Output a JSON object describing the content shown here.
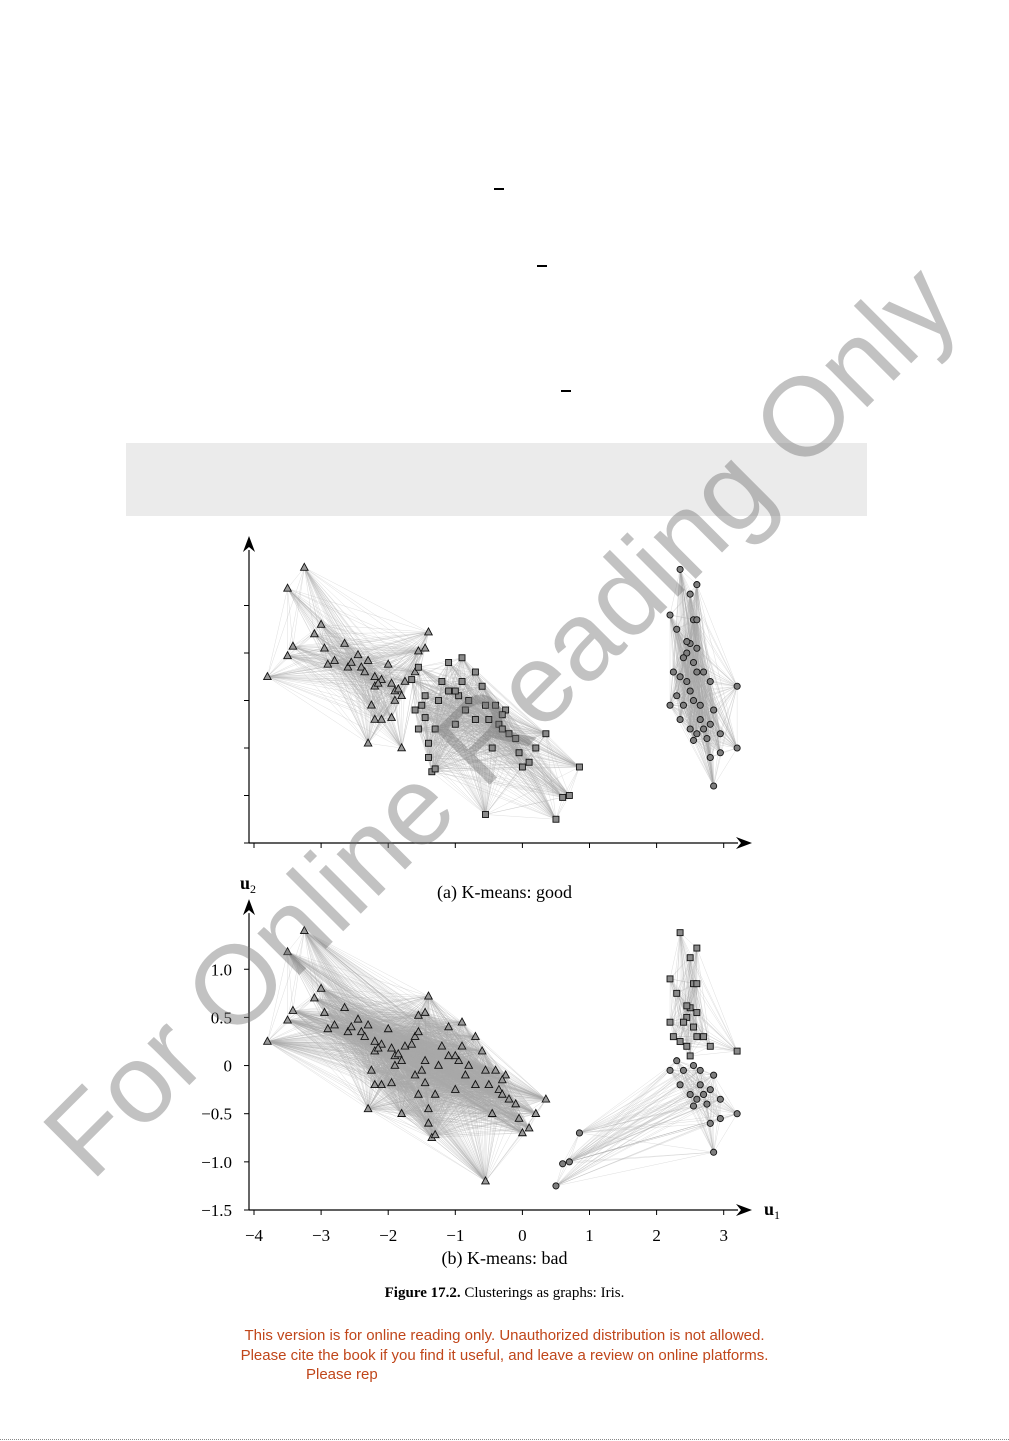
{
  "figure": {
    "number_label": "Figure 17.2.",
    "caption": "Clusterings as graphs: Iris."
  },
  "subplots": {
    "a_caption": "(a) K-means: good",
    "b_caption": "(b) K-means: bad"
  },
  "notice": {
    "line1": "This version is for online reading only. Unauthorized distribution is not allowed.",
    "line2": "Please cite the book if you find it useful, and leave a review on online platforms.",
    "line3": "Please rep"
  },
  "watermark": "For Online Reading Only",
  "chart_data": [
    {
      "type": "scatter",
      "title": "(a) K-means: good",
      "xlim": [
        -4,
        3.3
      ],
      "ylim": [
        -1.5,
        1.5
      ],
      "edges": "cluster-complete-graph",
      "series": [
        {
          "marker": "triangle",
          "points": [
            [
              -3.8,
              0.25
            ],
            [
              -3.5,
              1.18
            ],
            [
              -3.25,
              1.4
            ],
            [
              -3.5,
              0.47
            ],
            [
              -3.42,
              0.57
            ],
            [
              -3.1,
              0.7
            ],
            [
              -3.0,
              0.8
            ],
            [
              -2.95,
              0.55
            ],
            [
              -2.9,
              0.38
            ],
            [
              -2.8,
              0.42
            ],
            [
              -2.65,
              0.6
            ],
            [
              -2.6,
              0.35
            ],
            [
              -2.55,
              0.4
            ],
            [
              -2.45,
              0.48
            ],
            [
              -2.4,
              0.35
            ],
            [
              -2.35,
              0.3
            ],
            [
              -2.3,
              0.42
            ],
            [
              -2.2,
              0.15
            ],
            [
              -2.25,
              -0.05
            ],
            [
              -2.2,
              0.25
            ],
            [
              -2.1,
              0.22
            ],
            [
              -2.0,
              0.38
            ],
            [
              -1.95,
              0.18
            ],
            [
              -1.9,
              0.1
            ],
            [
              -1.85,
              0.12
            ],
            [
              -1.8,
              0.05
            ],
            [
              -1.75,
              0.2
            ],
            [
              -1.6,
              0.3
            ],
            [
              -1.55,
              0.52
            ],
            [
              -1.45,
              0.55
            ],
            [
              -2.3,
              -0.45
            ],
            [
              -2.2,
              -0.2
            ],
            [
              -2.1,
              -0.2
            ],
            [
              -1.95,
              -0.18
            ],
            [
              -1.8,
              -0.5
            ],
            [
              -1.4,
              0.72
            ],
            [
              -1.9,
              0.0
            ],
            [
              -2.15,
              0.18
            ]
          ]
        },
        {
          "marker": "square",
          "points": [
            [
              -1.65,
              0.22
            ],
            [
              -1.6,
              -0.1
            ],
            [
              -1.55,
              -0.3
            ],
            [
              -1.5,
              -0.05
            ],
            [
              -1.45,
              0.05
            ],
            [
              -1.45,
              -0.18
            ],
            [
              -1.4,
              -0.45
            ],
            [
              -1.35,
              -0.75
            ],
            [
              -1.3,
              -0.72
            ],
            [
              -1.3,
              -0.3
            ],
            [
              -1.25,
              0.0
            ],
            [
              -1.2,
              0.2
            ],
            [
              -1.1,
              0.4
            ],
            [
              -1.1,
              0.1
            ],
            [
              -1.0,
              -0.25
            ],
            [
              -0.95,
              0.05
            ],
            [
              -0.9,
              0.2
            ],
            [
              -0.9,
              0.45
            ],
            [
              -0.85,
              -0.1
            ],
            [
              -0.8,
              0.0
            ],
            [
              -0.7,
              0.3
            ],
            [
              -0.7,
              -0.2
            ],
            [
              -0.6,
              0.15
            ],
            [
              -0.55,
              -0.05
            ],
            [
              -0.5,
              -0.2
            ],
            [
              -0.45,
              -0.5
            ],
            [
              -0.4,
              -0.05
            ],
            [
              -0.35,
              -0.25
            ],
            [
              -0.3,
              -0.3
            ],
            [
              -0.25,
              -0.1
            ],
            [
              -0.2,
              -0.35
            ],
            [
              -0.1,
              -0.4
            ],
            [
              -0.05,
              -0.55
            ],
            [
              0.0,
              -0.7
            ],
            [
              0.1,
              -0.65
            ],
            [
              0.2,
              -0.5
            ],
            [
              -0.55,
              -1.2
            ],
            [
              0.35,
              -0.35
            ],
            [
              -1.0,
              0.1
            ],
            [
              -1.55,
              0.35
            ],
            [
              -1.4,
              -0.6
            ],
            [
              0.85,
              -0.7
            ],
            [
              0.7,
              -1.0
            ],
            [
              0.5,
              -1.25
            ],
            [
              -0.3,
              -0.15
            ],
            [
              0.6,
              -1.02
            ]
          ]
        },
        {
          "marker": "circle",
          "points": [
            [
              2.35,
              1.38
            ],
            [
              2.6,
              1.22
            ],
            [
              2.5,
              1.12
            ],
            [
              2.2,
              0.9
            ],
            [
              2.55,
              0.85
            ],
            [
              2.3,
              0.75
            ],
            [
              2.5,
              0.6
            ],
            [
              2.45,
              0.5
            ],
            [
              2.6,
              0.55
            ],
            [
              2.4,
              0.45
            ],
            [
              2.55,
              0.4
            ],
            [
              2.25,
              0.3
            ],
            [
              2.35,
              0.25
            ],
            [
              2.45,
              0.2
            ],
            [
              2.6,
              0.3
            ],
            [
              2.7,
              0.3
            ],
            [
              2.5,
              0.1
            ],
            [
              2.8,
              0.2
            ],
            [
              2.3,
              0.05
            ],
            [
              2.4,
              -0.05
            ],
            [
              2.55,
              0.0
            ],
            [
              2.65,
              -0.05
            ],
            [
              2.35,
              -0.2
            ],
            [
              2.5,
              -0.3
            ],
            [
              2.6,
              -0.35
            ],
            [
              2.7,
              -0.3
            ],
            [
              2.8,
              -0.25
            ],
            [
              2.85,
              -0.1
            ],
            [
              2.95,
              -0.55
            ],
            [
              2.85,
              -0.9
            ],
            [
              3.2,
              0.15
            ],
            [
              3.2,
              -0.5
            ],
            [
              2.75,
              -0.4
            ],
            [
              2.65,
              -0.2
            ],
            [
              2.55,
              -0.42
            ],
            [
              2.2,
              -0.05
            ],
            [
              2.45,
              0.62
            ],
            [
              2.8,
              -0.6
            ],
            [
              2.6,
              0.85
            ],
            [
              2.95,
              -0.35
            ]
          ]
        }
      ]
    },
    {
      "type": "scatter",
      "title": "(b) K-means: bad",
      "xlabel": "u1",
      "ylabel": "u2",
      "xlim": [
        -4,
        3.3
      ],
      "ylim": [
        -1.5,
        1.5
      ],
      "xticks": [
        "−4",
        "−3",
        "−2",
        "−1",
        "0",
        "1",
        "2",
        "3"
      ],
      "yticks": [
        "−1.5",
        "−1.0",
        "−0.5",
        "0",
        "0.5",
        "1.0"
      ],
      "edges": "cluster-complete-graph",
      "series": [
        {
          "marker": "triangle",
          "points": [
            [
              -3.8,
              0.25
            ],
            [
              -3.5,
              1.18
            ],
            [
              -3.25,
              1.4
            ],
            [
              -3.5,
              0.47
            ],
            [
              -3.42,
              0.57
            ],
            [
              -3.1,
              0.7
            ],
            [
              -3.0,
              0.8
            ],
            [
              -2.95,
              0.55
            ],
            [
              -2.9,
              0.38
            ],
            [
              -2.8,
              0.42
            ],
            [
              -2.65,
              0.6
            ],
            [
              -2.6,
              0.35
            ],
            [
              -2.55,
              0.4
            ],
            [
              -2.45,
              0.48
            ],
            [
              -2.4,
              0.35
            ],
            [
              -2.35,
              0.3
            ],
            [
              -2.3,
              0.42
            ],
            [
              -2.2,
              0.15
            ],
            [
              -2.25,
              -0.05
            ],
            [
              -2.2,
              0.25
            ],
            [
              -2.1,
              0.22
            ],
            [
              -2.0,
              0.38
            ],
            [
              -1.95,
              0.18
            ],
            [
              -1.9,
              0.1
            ],
            [
              -1.85,
              0.12
            ],
            [
              -1.8,
              0.05
            ],
            [
              -1.75,
              0.2
            ],
            [
              -1.6,
              0.3
            ],
            [
              -1.55,
              0.52
            ],
            [
              -1.45,
              0.55
            ],
            [
              -2.3,
              -0.45
            ],
            [
              -2.2,
              -0.2
            ],
            [
              -2.1,
              -0.2
            ],
            [
              -1.95,
              -0.18
            ],
            [
              -1.8,
              -0.5
            ],
            [
              -1.4,
              0.72
            ],
            [
              -1.9,
              0.0
            ],
            [
              -2.15,
              0.18
            ],
            [
              -1.65,
              0.22
            ],
            [
              -1.6,
              -0.1
            ],
            [
              -1.55,
              -0.3
            ],
            [
              -1.5,
              -0.05
            ],
            [
              -1.45,
              0.05
            ],
            [
              -1.45,
              -0.18
            ],
            [
              -1.4,
              -0.45
            ],
            [
              -1.35,
              -0.75
            ],
            [
              -1.3,
              -0.72
            ],
            [
              -1.3,
              -0.3
            ],
            [
              -1.25,
              0.0
            ],
            [
              -1.2,
              0.2
            ],
            [
              -1.1,
              0.4
            ],
            [
              -1.1,
              0.1
            ],
            [
              -1.0,
              -0.25
            ],
            [
              -0.95,
              0.05
            ],
            [
              -0.9,
              0.2
            ],
            [
              -0.9,
              0.45
            ],
            [
              -0.85,
              -0.1
            ],
            [
              -0.8,
              0.0
            ],
            [
              -0.7,
              0.3
            ],
            [
              -0.7,
              -0.2
            ],
            [
              -0.6,
              0.15
            ],
            [
              -0.55,
              -0.05
            ],
            [
              -0.5,
              -0.2
            ],
            [
              -0.45,
              -0.5
            ],
            [
              -0.4,
              -0.05
            ],
            [
              -0.35,
              -0.25
            ],
            [
              -0.3,
              -0.3
            ],
            [
              -0.25,
              -0.1
            ],
            [
              -0.2,
              -0.35
            ],
            [
              -0.1,
              -0.4
            ],
            [
              -0.05,
              -0.55
            ],
            [
              0.0,
              -0.7
            ],
            [
              0.1,
              -0.65
            ],
            [
              0.2,
              -0.5
            ],
            [
              -0.55,
              -1.2
            ],
            [
              0.35,
              -0.35
            ],
            [
              -1.0,
              0.1
            ],
            [
              -1.55,
              0.35
            ],
            [
              -1.4,
              -0.6
            ],
            [
              -0.3,
              -0.15
            ]
          ]
        },
        {
          "marker": "square",
          "points": [
            [
              2.35,
              1.38
            ],
            [
              2.6,
              1.22
            ],
            [
              2.5,
              1.12
            ],
            [
              2.2,
              0.9
            ],
            [
              2.55,
              0.85
            ],
            [
              2.3,
              0.75
            ],
            [
              2.5,
              0.6
            ],
            [
              2.45,
              0.5
            ],
            [
              2.6,
              0.55
            ],
            [
              2.4,
              0.45
            ],
            [
              2.55,
              0.4
            ],
            [
              2.25,
              0.3
            ],
            [
              2.35,
              0.25
            ],
            [
              2.45,
              0.2
            ],
            [
              2.6,
              0.3
            ],
            [
              2.7,
              0.3
            ],
            [
              2.5,
              0.1
            ],
            [
              2.8,
              0.2
            ],
            [
              3.2,
              0.15
            ],
            [
              2.45,
              0.62
            ],
            [
              2.6,
              0.85
            ],
            [
              2.2,
              0.45
            ]
          ]
        },
        {
          "marker": "circle",
          "points": [
            [
              2.3,
              0.05
            ],
            [
              2.4,
              -0.05
            ],
            [
              2.55,
              0.0
            ],
            [
              2.65,
              -0.05
            ],
            [
              2.35,
              -0.2
            ],
            [
              2.5,
              -0.3
            ],
            [
              2.6,
              -0.35
            ],
            [
              2.7,
              -0.3
            ],
            [
              2.8,
              -0.25
            ],
            [
              2.85,
              -0.1
            ],
            [
              2.95,
              -0.55
            ],
            [
              2.85,
              -0.9
            ],
            [
              3.2,
              -0.5
            ],
            [
              2.75,
              -0.4
            ],
            [
              2.65,
              -0.2
            ],
            [
              2.55,
              -0.42
            ],
            [
              2.2,
              -0.05
            ],
            [
              2.8,
              -0.6
            ],
            [
              2.95,
              -0.35
            ],
            [
              0.85,
              -0.7
            ],
            [
              0.7,
              -1.0
            ],
            [
              0.5,
              -1.25
            ],
            [
              0.6,
              -1.02
            ]
          ]
        }
      ]
    }
  ]
}
